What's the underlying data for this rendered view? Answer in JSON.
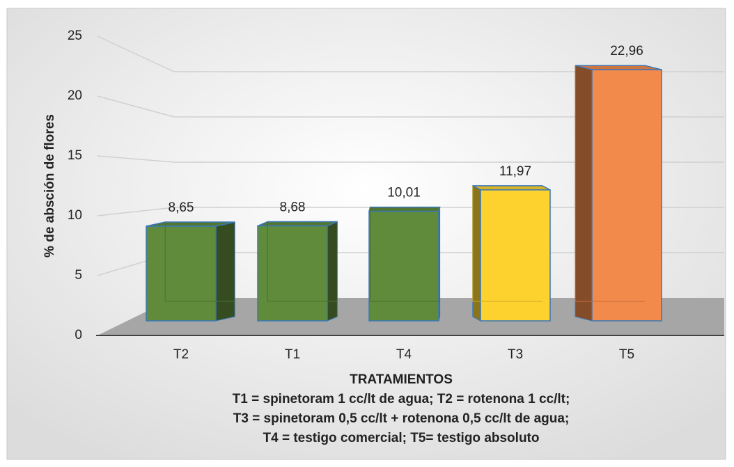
{
  "chart_data": {
    "type": "bar3d",
    "y_label": "% de absción de flores",
    "x_label": "TRATAMIENTOS",
    "notes": [
      "T1 = spinetoram 1 cc/lt de agua; T2 = rotenona 1 cc/lt;",
      "T3 = spinetoram 0,5 cc/lt + rotenona 0,5 cc/lt de agua;",
      "T4 = testigo comercial; T5= testigo absoluto"
    ],
    "categories": [
      "T2",
      "T1",
      "T4",
      "T3",
      "T5"
    ],
    "values": [
      8.65,
      8.68,
      10.01,
      11.97,
      22.96
    ],
    "value_labels": [
      "8,65",
      "8,68",
      "10,01",
      "11,97",
      "22,96"
    ],
    "colors": [
      "#5f8b3b",
      "#5f8b3b",
      "#5f8b3b",
      "#fdd22f",
      "#f28a4c"
    ],
    "ylim": [
      0,
      25
    ],
    "yticks": [
      0,
      5,
      10,
      15,
      20,
      25
    ],
    "grid": true
  }
}
